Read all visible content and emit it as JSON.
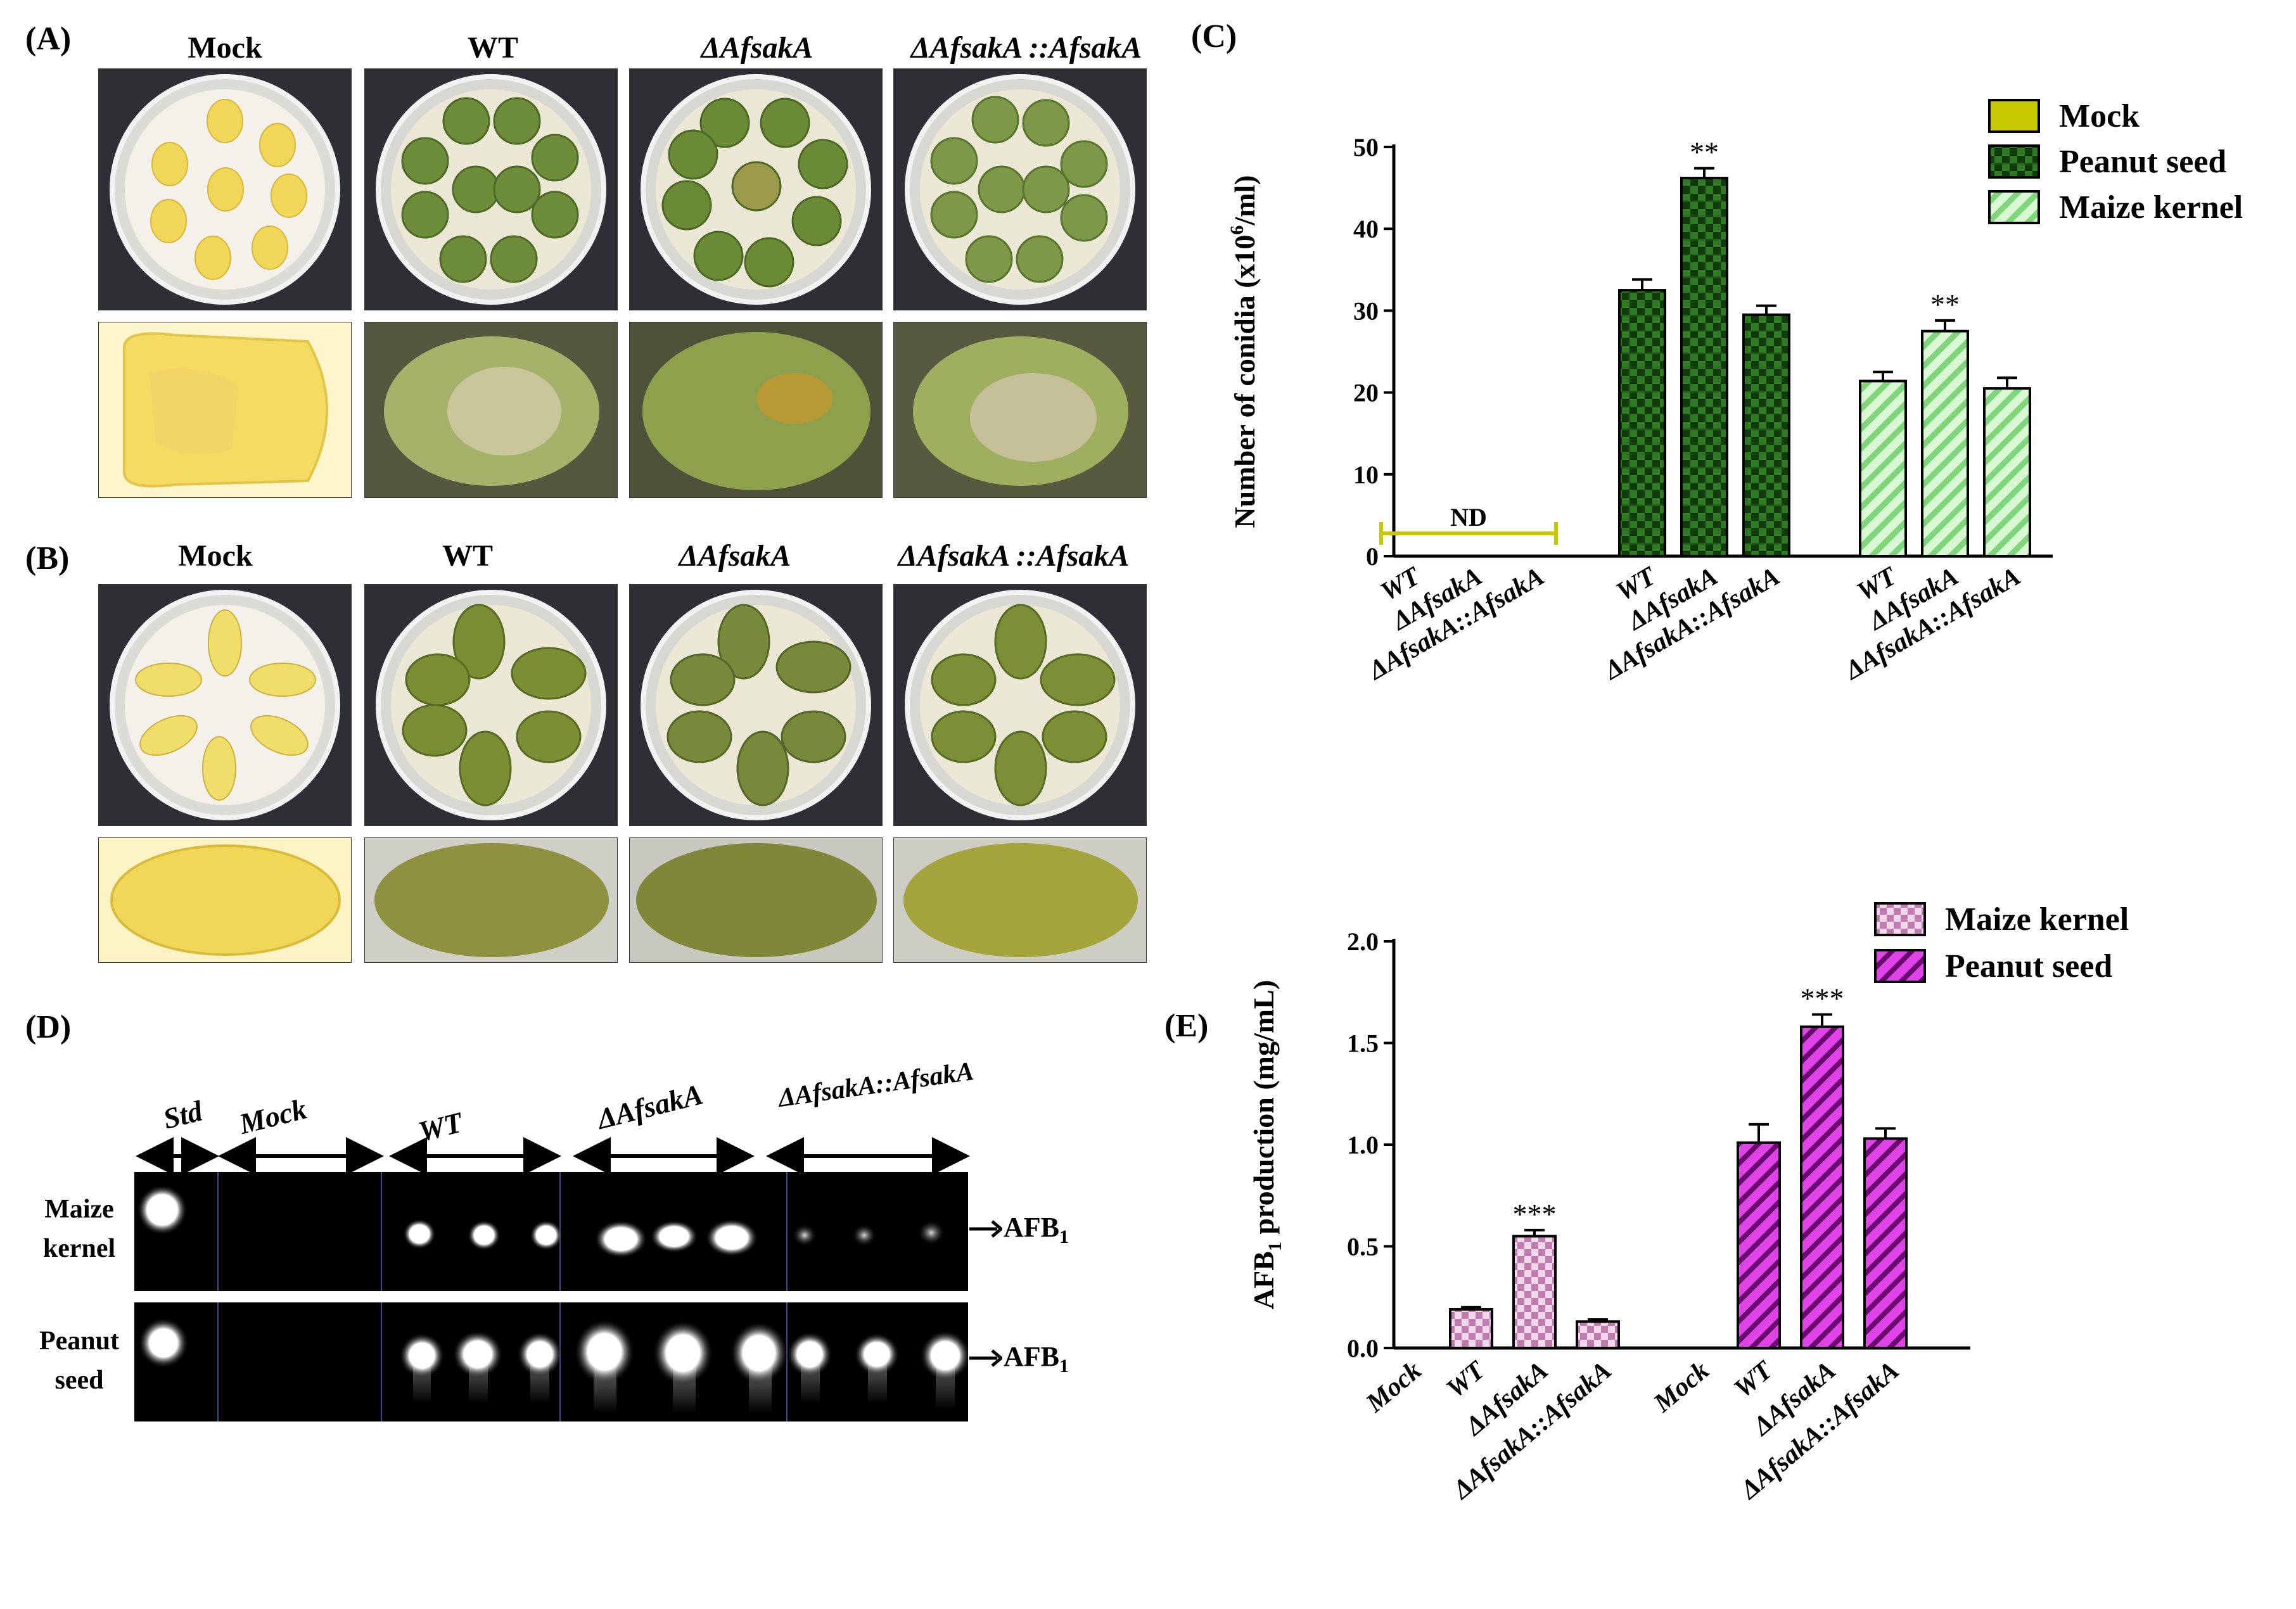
{
  "panels": {
    "A": {
      "letter": "(A)",
      "columns": [
        "Mock",
        "WT",
        "ΔAfsakA",
        "ΔAfsakA ::AfsakA"
      ]
    },
    "B": {
      "letter": "(B)",
      "columns": [
        "Mock",
        "WT",
        "ΔAfsakA",
        "ΔAfsakA ::AfsakA"
      ]
    },
    "C": {
      "letter": "(C)"
    },
    "D": {
      "letter": "(D)",
      "lanes": [
        "Std",
        "Mock",
        "WT",
        "ΔAfsakA",
        "ΔAfsakA::AfsakA"
      ],
      "rows": [
        {
          "label_line1": "Maize",
          "label_line2": "kernel",
          "marker": "AFB",
          "marker_sub": "1"
        },
        {
          "label_line1": "Peanut",
          "label_line2": "seed",
          "marker": "AFB",
          "marker_sub": "1"
        }
      ]
    },
    "E": {
      "letter": "(E)"
    }
  },
  "chart_data": [
    {
      "id": "C",
      "type": "bar",
      "ylabel_main": "Number of conidia (x10",
      "ylabel_sup": "6",
      "ylabel_tail": "/ml)",
      "ylim": [
        0,
        50
      ],
      "yticks": [
        "0",
        "10",
        "20",
        "30",
        "40",
        "50"
      ],
      "groups": [
        {
          "series": "Mock",
          "categories": [
            "WT",
            "ΔAfsakA",
            "ΔAfsakA::AfsakA"
          ],
          "values": [
            0,
            0,
            0
          ],
          "errors": [
            0,
            0,
            0
          ],
          "note": "ND"
        },
        {
          "series": "Peanut seed",
          "categories": [
            "WT",
            "ΔAfsakA",
            "ΔAfsakA::AfsakA"
          ],
          "values": [
            32.5,
            46.2,
            29.5
          ],
          "errors": [
            1.3,
            1.2,
            1.1
          ],
          "marks": [
            "",
            "**",
            ""
          ]
        },
        {
          "series": "Maize kernel",
          "categories": [
            "WT",
            "ΔAfsakA",
            "ΔAfsakA::AfsakA"
          ],
          "values": [
            21.4,
            27.5,
            20.5
          ],
          "errors": [
            1.1,
            1.3,
            1.3
          ],
          "marks": [
            "",
            "**",
            ""
          ]
        }
      ],
      "legend": [
        {
          "name": "Mock",
          "color": "#c8c800",
          "pattern": "solid"
        },
        {
          "name": "Peanut seed",
          "color": "#1e5c16",
          "pattern": "checker"
        },
        {
          "name": "Maize kernel",
          "color": "#b4f0b0",
          "pattern": "hatch"
        }
      ],
      "legend_position": "top-right"
    },
    {
      "id": "E",
      "type": "bar",
      "ylabel_main": "AFB",
      "ylabel_sub": "1",
      "ylabel_tail": " production (mg/mL)",
      "ylim": [
        0,
        2.0
      ],
      "yticks": [
        "0.0",
        "0.5",
        "1.0",
        "1.5",
        "2.0"
      ],
      "groups": [
        {
          "series": "Maize kernel",
          "categories": [
            "Mock",
            "WT",
            "ΔAfsakA",
            "ΔAfsakA::AfsakA"
          ],
          "values": [
            0,
            0.19,
            0.55,
            0.13
          ],
          "errors": [
            0,
            0.01,
            0.03,
            0.01
          ],
          "marks": [
            "",
            "",
            "***",
            ""
          ]
        },
        {
          "series": "Peanut seed",
          "categories": [
            "Mock",
            "WT",
            "ΔAfsakA",
            "ΔAfsakA::AfsakA"
          ],
          "values": [
            0,
            1.01,
            1.58,
            1.03
          ],
          "errors": [
            0,
            0.09,
            0.06,
            0.05
          ],
          "marks": [
            "",
            "",
            "***",
            ""
          ]
        }
      ],
      "legend": [
        {
          "name": "Maize kernel",
          "color": "#e8b8d8",
          "pattern": "checker"
        },
        {
          "name": "Peanut seed",
          "color": "#c020c8",
          "pattern": "hatch"
        }
      ],
      "legend_position": "top-right"
    }
  ]
}
